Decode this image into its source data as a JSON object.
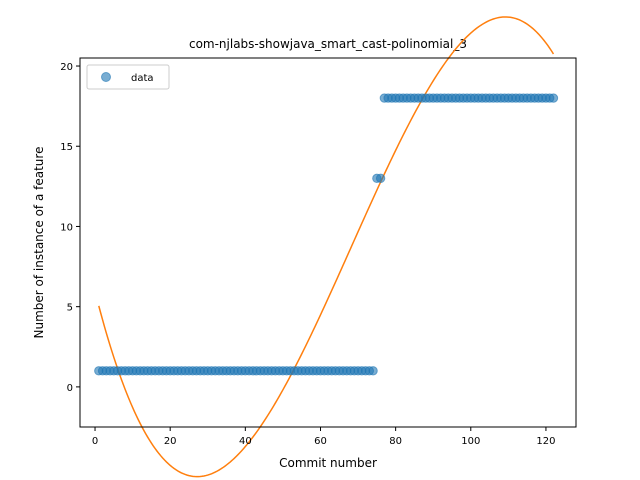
{
  "chart_data": {
    "type": "scatter",
    "title": "com-njlabs-showjava_smart_cast-polinomial_3",
    "xlabel": "Commit number",
    "ylabel": "Number of instance of a feature",
    "xlim": [
      -4,
      128
    ],
    "ylim": [
      -2.5,
      20.5
    ],
    "xticks": [
      0,
      20,
      40,
      60,
      80,
      100,
      120
    ],
    "yticks": [
      0,
      5,
      10,
      15,
      20
    ],
    "grid": false,
    "legend": {
      "placement": "top-left",
      "entries": [
        "data"
      ]
    },
    "series": [
      {
        "name": "data",
        "kind": "scatter",
        "color": "#1f77b4",
        "segments": [
          {
            "x_from": 1,
            "x_to": 74,
            "y": 1
          },
          {
            "x_from": 75,
            "x_to": 76,
            "y": 13
          },
          {
            "x_from": 77,
            "x_to": 122,
            "y": 18
          }
        ]
      },
      {
        "kind": "line",
        "color": "#ff7f0e",
        "polynomial_degree": 3,
        "x_range": [
          1,
          122
        ],
        "coefficients": [
          5.955,
          -0.926,
          0.02126,
          -0.0001039
        ]
      }
    ]
  }
}
